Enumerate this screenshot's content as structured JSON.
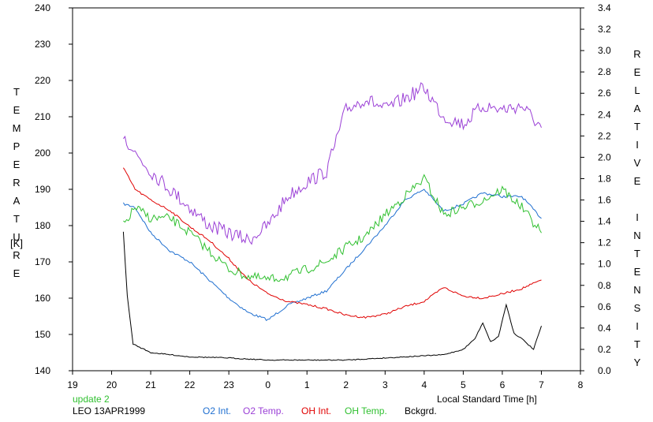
{
  "chart_data": {
    "type": "line",
    "xlabel": "Local Standard Time [h]",
    "ylabel_left": "TEMPERATURE",
    "ylabel_left_unit": "[K]",
    "ylabel_right": "RELATIVE INTENSITY",
    "x_ticks": [
      "19",
      "20",
      "21",
      "22",
      "23",
      "0",
      "1",
      "2",
      "3",
      "4",
      "5",
      "6",
      "7",
      "8"
    ],
    "xlim": [
      19,
      32
    ],
    "y_left_ticks": [
      "140",
      "150",
      "160",
      "170",
      "180",
      "190",
      "200",
      "210",
      "220",
      "230",
      "240"
    ],
    "ylim_left": [
      140,
      240
    ],
    "y_right_ticks": [
      "0.0",
      "0.2",
      "0.4",
      "0.6",
      "0.8",
      "1.0",
      "1.2",
      "1.4",
      "1.6",
      "1.8",
      "2.0",
      "2.2",
      "2.4",
      "2.6",
      "2.8",
      "3.0",
      "3.2",
      "3.4"
    ],
    "ylim_right": [
      0,
      3.4
    ],
    "grid": false,
    "legend_position": "bottom",
    "annotations": {
      "update": "update 2",
      "station": "LEO 13APR1999"
    },
    "series": [
      {
        "name": "O2 Int.",
        "axis": "left",
        "color": "#1f6fd0",
        "x": [
          20.3,
          20.6,
          21.0,
          21.5,
          22.0,
          22.5,
          23.0,
          23.5,
          24.0,
          24.5,
          25.0,
          25.5,
          26.0,
          26.5,
          27.0,
          27.5,
          28.0,
          28.5,
          29.0,
          29.5,
          30.0,
          30.5,
          31.0
        ],
        "y": [
          186,
          185,
          178,
          173,
          170,
          165,
          160,
          156,
          154,
          158,
          160,
          162,
          168,
          174,
          180,
          187,
          190,
          184,
          186,
          189,
          188,
          188,
          182
        ]
      },
      {
        "name": "O2 Temp.",
        "axis": "left",
        "color": "#9b40d6",
        "x": [
          20.3,
          20.6,
          21.0,
          21.5,
          22.0,
          22.5,
          23.0,
          23.5,
          24.0,
          24.5,
          25.0,
          25.5,
          26.0,
          26.5,
          27.0,
          27.5,
          28.0,
          28.5,
          29.0,
          29.5,
          30.0,
          30.5,
          31.0
        ],
        "y": [
          205,
          200,
          195,
          190,
          185,
          180,
          178,
          176,
          180,
          188,
          192,
          195,
          212,
          215,
          212,
          215,
          218,
          210,
          208,
          213,
          212,
          213,
          207
        ]
      },
      {
        "name": "OH Int.",
        "axis": "right",
        "color": "#e00000",
        "x": [
          20.3,
          20.6,
          21.0,
          21.5,
          22.0,
          22.5,
          23.0,
          23.5,
          24.0,
          24.5,
          25.0,
          25.5,
          26.0,
          26.5,
          27.0,
          27.5,
          28.0,
          28.5,
          29.0,
          29.5,
          30.0,
          30.5,
          31.0
        ],
        "y": [
          1.9,
          1.7,
          1.6,
          1.5,
          1.35,
          1.22,
          1.05,
          0.85,
          0.72,
          0.65,
          0.62,
          0.58,
          0.52,
          0.5,
          0.53,
          0.6,
          0.65,
          0.78,
          0.7,
          0.68,
          0.72,
          0.77,
          0.85
        ]
      },
      {
        "name": "OH Temp.",
        "axis": "left",
        "color": "#30c030",
        "x": [
          20.3,
          20.6,
          21.0,
          21.5,
          22.0,
          22.5,
          23.0,
          23.5,
          24.0,
          24.5,
          25.0,
          25.5,
          26.0,
          26.5,
          27.0,
          27.5,
          28.0,
          28.5,
          29.0,
          29.5,
          30.0,
          30.5,
          31.0
        ],
        "y": [
          180,
          185,
          182,
          182,
          178,
          173,
          168,
          166,
          165,
          166,
          168,
          170,
          174,
          177,
          183,
          188,
          193,
          183,
          185,
          187,
          190,
          185,
          178
        ]
      },
      {
        "name": "Bckgrd.",
        "axis": "right",
        "color": "#000000",
        "x": [
          20.3,
          20.4,
          20.55,
          21.0,
          22.0,
          23.0,
          24.0,
          25.0,
          26.0,
          27.0,
          28.0,
          28.5,
          29.0,
          29.3,
          29.5,
          29.7,
          29.9,
          30.1,
          30.3,
          30.5,
          30.8,
          31.0
        ],
        "y": [
          1.3,
          0.7,
          0.25,
          0.17,
          0.13,
          0.12,
          0.1,
          0.1,
          0.1,
          0.12,
          0.14,
          0.15,
          0.2,
          0.3,
          0.45,
          0.27,
          0.32,
          0.62,
          0.35,
          0.3,
          0.2,
          0.42
        ]
      }
    ]
  }
}
